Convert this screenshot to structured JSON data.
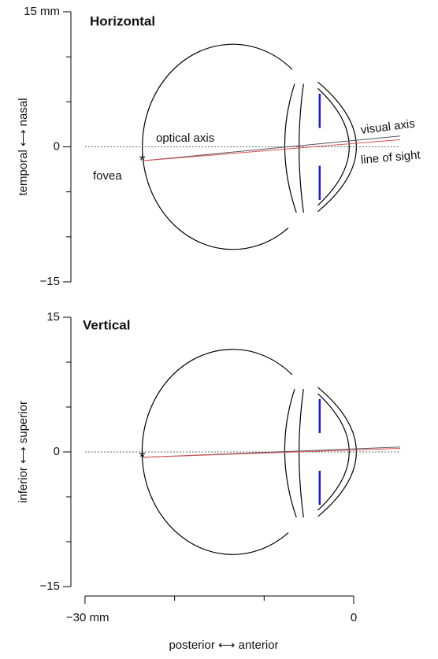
{
  "chart_data": [
    {
      "type": "eye",
      "title": "Horizontal",
      "ylabel": "temporal ⟷ nasal",
      "ylim": [
        -15,
        15
      ],
      "yticks": [
        {
          "value": -15,
          "label": "−15"
        },
        0,
        {
          "value": 15,
          "label": "15 mm"
        }
      ],
      "minor_yticks": [
        -10,
        -5,
        5,
        10
      ],
      "annotations": [
        "optical axis",
        "visual axis",
        "line of sight",
        "fovea"
      ]
    },
    {
      "type": "eye",
      "title": "Vertical",
      "ylabel": "inferior ⟷ superior",
      "ylim": [
        -15,
        15
      ],
      "yticks": [
        {
          "value": -15,
          "label": "−15"
        },
        0,
        15
      ],
      "minor_yticks": [
        -10,
        -5,
        5,
        10
      ]
    }
  ],
  "x_axis": {
    "xlabel": "posterior ⟷ anterior",
    "xticks": [
      {
        "value": -30,
        "label": "−30 mm"
      },
      0
    ],
    "minor_xticks": [
      -20,
      -10
    ]
  }
}
